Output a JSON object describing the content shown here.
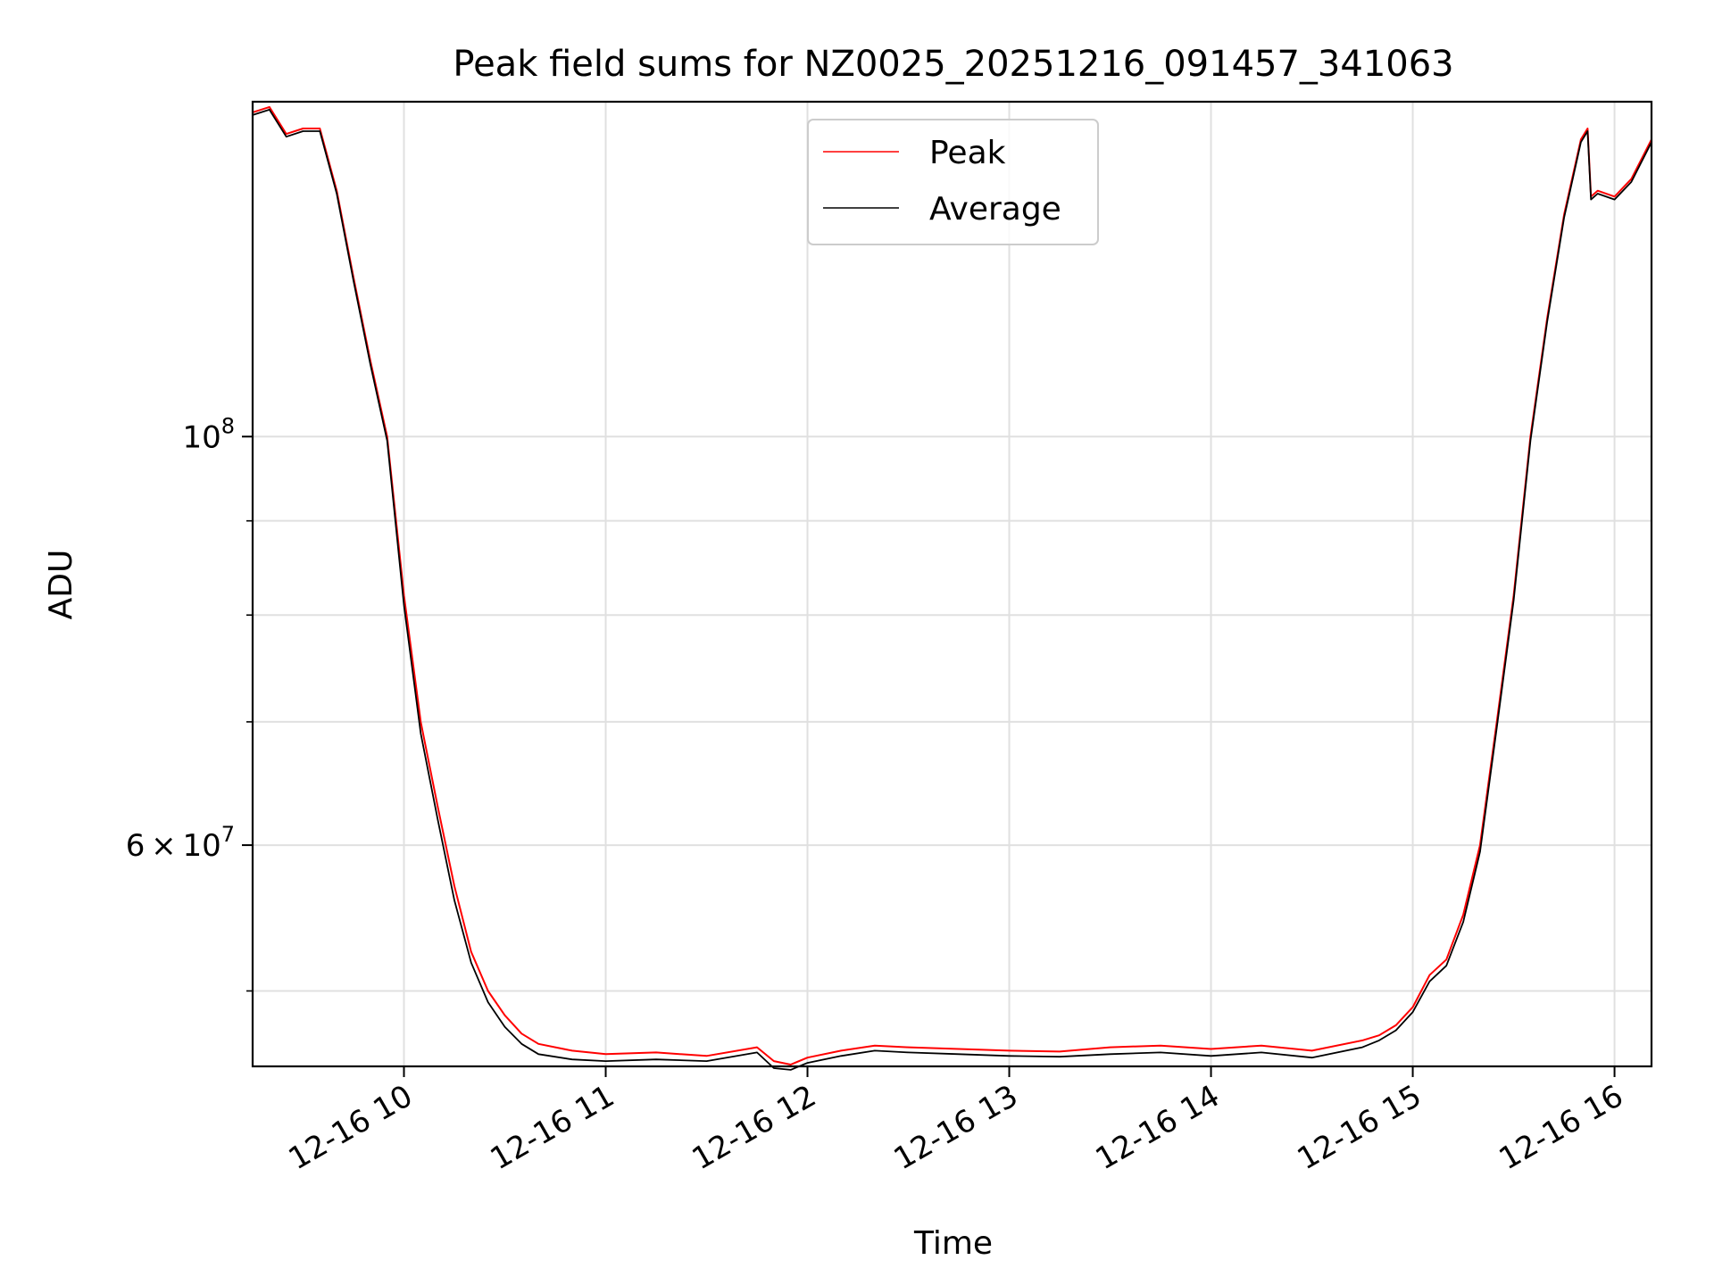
{
  "chart_data": {
    "type": "line",
    "title": "Peak field sums for NZ0025_20251216_091457_341063",
    "xlabel": "Time",
    "ylabel": "ADU",
    "yscale": "log",
    "grid": true,
    "legend_position": "top-center",
    "xlim": [
      "2025-12-16 09:15",
      "2025-12-16 16:11"
    ],
    "ylim": [
      45500000,
      152000000
    ],
    "x_ticks": [
      {
        "value": "2025-12-16 10:00",
        "label": "12-16 10"
      },
      {
        "value": "2025-12-16 11:00",
        "label": "12-16 11"
      },
      {
        "value": "2025-12-16 12:00",
        "label": "12-16 12"
      },
      {
        "value": "2025-12-16 13:00",
        "label": "12-16 13"
      },
      {
        "value": "2025-12-16 14:00",
        "label": "12-16 14"
      },
      {
        "value": "2025-12-16 15:00",
        "label": "12-16 15"
      },
      {
        "value": "2025-12-16 16:00",
        "label": "12-16 16"
      }
    ],
    "y_major_ticks": [
      {
        "value": 60000000,
        "base": "6",
        "exp": "7",
        "times": "×",
        "ten": "10"
      },
      {
        "value": 100000000,
        "base": "",
        "exp": "8",
        "times": "",
        "ten": "10"
      }
    ],
    "y_minor_ticks": [
      50000000,
      70000000,
      80000000,
      90000000
    ],
    "x": [
      "2025-12-16 09:15",
      "2025-12-16 09:20",
      "2025-12-16 09:25",
      "2025-12-16 09:30",
      "2025-12-16 09:35",
      "2025-12-16 09:40",
      "2025-12-16 09:45",
      "2025-12-16 09:50",
      "2025-12-16 09:55",
      "2025-12-16 10:00",
      "2025-12-16 10:05",
      "2025-12-16 10:10",
      "2025-12-16 10:15",
      "2025-12-16 10:20",
      "2025-12-16 10:25",
      "2025-12-16 10:30",
      "2025-12-16 10:35",
      "2025-12-16 10:40",
      "2025-12-16 10:50",
      "2025-12-16 11:00",
      "2025-12-16 11:15",
      "2025-12-16 11:30",
      "2025-12-16 11:45",
      "2025-12-16 11:50",
      "2025-12-16 11:55",
      "2025-12-16 12:00",
      "2025-12-16 12:10",
      "2025-12-16 12:20",
      "2025-12-16 12:30",
      "2025-12-16 12:45",
      "2025-12-16 13:00",
      "2025-12-16 13:15",
      "2025-12-16 13:30",
      "2025-12-16 13:45",
      "2025-12-16 14:00",
      "2025-12-16 14:15",
      "2025-12-16 14:30",
      "2025-12-16 14:45",
      "2025-12-16 14:50",
      "2025-12-16 14:55",
      "2025-12-16 15:00",
      "2025-12-16 15:05",
      "2025-12-16 15:10",
      "2025-12-16 15:15",
      "2025-12-16 15:20",
      "2025-12-16 15:25",
      "2025-12-16 15:30",
      "2025-12-16 15:35",
      "2025-12-16 15:40",
      "2025-12-16 15:45",
      "2025-12-16 15:50",
      "2025-12-16 15:52",
      "2025-12-16 15:53",
      "2025-12-16 15:55",
      "2025-12-16 16:00",
      "2025-12-16 16:05",
      "2025-12-16 16:11"
    ],
    "series": [
      {
        "name": "Peak",
        "color": "#ff0000",
        "values": [
          150000000,
          151000000,
          146000000,
          147000000,
          147000000,
          136000000,
          122000000,
          110000000,
          100000000,
          82000000,
          70000000,
          63000000,
          57000000,
          52500000,
          50000000,
          48500000,
          47400000,
          46800000,
          46400000,
          46200000,
          46300000,
          46100000,
          46600000,
          45800000,
          45600000,
          46000000,
          46400000,
          46700000,
          46600000,
          46500000,
          46400000,
          46350000,
          46600000,
          46700000,
          46500000,
          46700000,
          46400000,
          47000000,
          47300000,
          47900000,
          49000000,
          51000000,
          52000000,
          55000000,
          60000000,
          70000000,
          82000000,
          100000000,
          116000000,
          132000000,
          145000000,
          147000000,
          135000000,
          136000000,
          135000000,
          138000000,
          145000000
        ]
      },
      {
        "name": "Average",
        "color": "#000000",
        "values": [
          149500000,
          150500000,
          145500000,
          146500000,
          146500000,
          135500000,
          121500000,
          109500000,
          99500000,
          81000000,
          69000000,
          62000000,
          56000000,
          51800000,
          49300000,
          47800000,
          46800000,
          46200000,
          45900000,
          45800000,
          45900000,
          45800000,
          46300000,
          45400000,
          45300000,
          45700000,
          46100000,
          46400000,
          46300000,
          46200000,
          46100000,
          46050000,
          46200000,
          46300000,
          46100000,
          46300000,
          46000000,
          46600000,
          47000000,
          47600000,
          48700000,
          50600000,
          51600000,
          54500000,
          59500000,
          69500000,
          81500000,
          99500000,
          115500000,
          131500000,
          144500000,
          146500000,
          134500000,
          135500000,
          134500000,
          137500000,
          144500000
        ]
      }
    ]
  }
}
